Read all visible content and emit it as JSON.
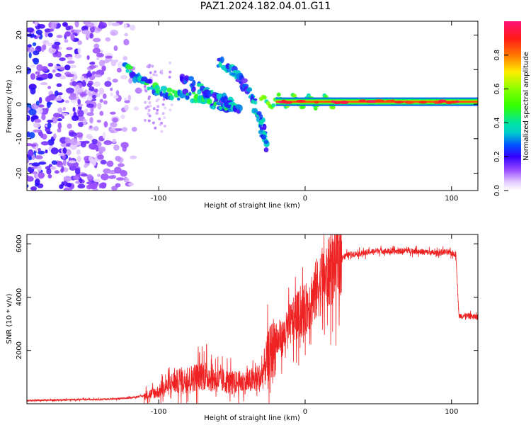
{
  "title": "PAZ1.2024.182.04.01.G11",
  "chart_data": [
    {
      "type": "heatmap",
      "xlabel": "Height of straight line (km)",
      "ylabel": "Frequency (Hz)",
      "xlim": [
        -190,
        118
      ],
      "ylim": [
        -25,
        24
      ],
      "xticks": [
        -100,
        0,
        100
      ],
      "yticks": [
        -20,
        -10,
        0,
        10,
        20
      ],
      "colorbar": {
        "label": "Normalized spectral amplitude",
        "range": [
          0.0,
          1.0
        ],
        "ticks": [
          0.0,
          0.2,
          0.4,
          0.6,
          0.8
        ],
        "colormap": "gist_ncar_r"
      },
      "features": [
        {
          "name": "scattered noise",
          "x": [
            -190,
            -110
          ],
          "y": [
            -25,
            24
          ],
          "amplitude": 0.15
        },
        {
          "name": "descending track 1",
          "points": [
            [
              -123,
              11
            ],
            [
              -110,
              6
            ],
            [
              -95,
              3
            ],
            [
              -75,
              2
            ],
            [
              -60,
              0
            ],
            [
              -50,
              -1
            ]
          ],
          "amplitude": 0.35
        },
        {
          "name": "descending track 2",
          "points": [
            [
              -85,
              8
            ],
            [
              -70,
              4
            ],
            [
              -55,
              1
            ],
            [
              -45,
              -1
            ]
          ],
          "amplitude": 0.3
        },
        {
          "name": "descending track 3",
          "points": [
            [
              -58,
              12
            ],
            [
              -45,
              8
            ],
            [
              -38,
              3
            ],
            [
              -30,
              -5
            ],
            [
              -27,
              -12
            ]
          ],
          "amplitude": 0.3
        },
        {
          "name": "carrier line",
          "x": [
            -30,
            118
          ],
          "y": 0.7,
          "amplitude": 0.85
        }
      ]
    },
    {
      "type": "line",
      "xlabel": "Height of straight line (km)",
      "ylabel": "SNR (10 * v/v)",
      "xlim": [
        -190,
        118
      ],
      "ylim": [
        0,
        6350
      ],
      "xticks": [
        -100,
        0,
        100
      ],
      "yticks": [
        2000,
        4000,
        6000
      ],
      "color": "#ee2222",
      "series": [
        {
          "x": [
            -190,
            -160,
            -130,
            -120,
            -110,
            -100,
            -90,
            -80,
            -70,
            -60,
            -50,
            -40,
            -30,
            -25,
            -20,
            -15,
            -10,
            -5,
            0,
            5,
            10,
            15,
            20,
            25,
            30,
            40,
            50,
            60,
            70,
            80,
            90,
            95,
            100,
            103,
            105,
            110,
            118
          ],
          "values": [
            120,
            150,
            180,
            220,
            300,
            450,
            800,
            900,
            1100,
            900,
            800,
            800,
            1000,
            1800,
            2300,
            2500,
            3000,
            3300,
            3500,
            4000,
            4500,
            4800,
            5200,
            5500,
            5600,
            5650,
            5750,
            5700,
            5750,
            5700,
            5650,
            5700,
            5650,
            5600,
            3300,
            3300,
            3250
          ]
        }
      ]
    }
  ],
  "colors": {
    "trace": "#ee2222"
  }
}
